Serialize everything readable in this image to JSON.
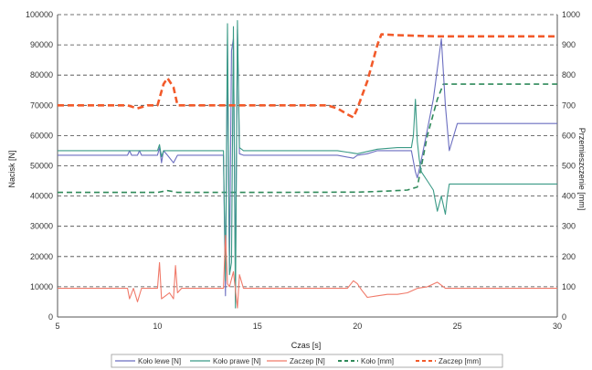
{
  "chart_data": {
    "type": "line",
    "xlabel": "Czas [s]",
    "ylabel_left": "Nacisk [N]",
    "ylabel_right": "Przemieszczenie [mm]",
    "xlim": [
      5,
      30
    ],
    "ylim_left": [
      0,
      100000
    ],
    "ylim_right": [
      0,
      1000
    ],
    "x_ticks": [
      5,
      10,
      15,
      20,
      25,
      30
    ],
    "y_ticks_left": [
      0,
      10000,
      20000,
      30000,
      40000,
      50000,
      60000,
      70000,
      80000,
      90000,
      100000
    ],
    "y_ticks_right": [
      0,
      100,
      200,
      300,
      400,
      500,
      600,
      700,
      800,
      900,
      1000
    ],
    "grid": "horizontal-dashed",
    "legend": "bottom",
    "series": [
      {
        "name": "Koło lewe [N]",
        "axis": "left",
        "color": "#6b6ec0",
        "dash": "solid",
        "x": [
          5,
          8.5,
          8.6,
          8.7,
          9.0,
          9.1,
          9.2,
          10.0,
          10.1,
          10.2,
          10.3,
          10.5,
          10.8,
          11.0,
          11.1,
          11.3,
          13.0,
          13.3,
          13.4,
          13.5,
          13.6,
          13.7,
          13.8,
          13.9,
          14.0,
          14.1,
          14.3,
          14.6,
          15.0,
          19.0,
          19.8,
          20.0,
          20.5,
          21.0,
          22.0,
          22.7,
          22.9,
          23.0,
          23.2,
          23.5,
          23.8,
          24.0,
          24.2,
          24.4,
          24.6,
          25.0,
          30.0
        ],
        "values": [
          53500,
          53500,
          55000,
          53500,
          53500,
          55000,
          53500,
          53500,
          56000,
          51000,
          55000,
          53500,
          51000,
          53500,
          53500,
          53500,
          53500,
          53500,
          7000,
          90000,
          15000,
          88000,
          92000,
          12000,
          95000,
          54000,
          53500,
          53500,
          53500,
          53500,
          52500,
          53500,
          54000,
          55000,
          55000,
          55000,
          48000,
          46000,
          52000,
          62000,
          72000,
          82000,
          92000,
          70000,
          55000,
          64000,
          64000
        ]
      },
      {
        "name": "Koło prawe [N]",
        "axis": "left",
        "color": "#3a9a86",
        "dash": "solid",
        "x": [
          5,
          10.0,
          10.1,
          10.2,
          10.3,
          10.5,
          11.0,
          13.0,
          13.3,
          13.4,
          13.5,
          13.6,
          13.7,
          13.8,
          13.9,
          14.0,
          14.1,
          14.3,
          15.0,
          19.0,
          20.0,
          21.0,
          22.0,
          22.7,
          22.8,
          22.9,
          23.0,
          23.1,
          23.2,
          23.5,
          23.8,
          24.0,
          24.2,
          24.4,
          24.5,
          24.6,
          25.0,
          30.0
        ],
        "values": [
          55000,
          55000,
          57000,
          53000,
          55000,
          55000,
          55000,
          55000,
          55000,
          12000,
          97000,
          14000,
          18000,
          96000,
          3000,
          98000,
          56000,
          55000,
          55000,
          55000,
          54000,
          55500,
          56000,
          56000,
          60000,
          72000,
          58000,
          52000,
          48000,
          45000,
          42000,
          35000,
          40000,
          34000,
          40000,
          44000,
          44000,
          44000
        ]
      },
      {
        "name": "Zaczep [N]",
        "axis": "left",
        "color": "#f07a6a",
        "dash": "solid",
        "x": [
          5,
          8.5,
          8.6,
          8.8,
          9.0,
          9.2,
          10.0,
          10.1,
          10.2,
          10.4,
          10.6,
          10.8,
          10.9,
          11.0,
          11.2,
          13.0,
          13.3,
          13.4,
          13.5,
          13.6,
          13.8,
          14.0,
          14.1,
          14.3,
          15.0,
          19.5,
          19.8,
          20.0,
          20.2,
          20.5,
          21.0,
          21.5,
          22.0,
          22.5,
          23.0,
          23.5,
          24.0,
          24.2,
          24.4,
          25.0,
          30.0
        ],
        "values": [
          9500,
          9500,
          6000,
          9500,
          5000,
          9500,
          9500,
          18000,
          6000,
          7000,
          8000,
          6000,
          17000,
          8000,
          9500,
          9500,
          9500,
          27000,
          11000,
          10000,
          15000,
          3000,
          14000,
          9500,
          9500,
          9500,
          12000,
          11000,
          9000,
          6500,
          7000,
          7500,
          7500,
          8000,
          9500,
          10000,
          11500,
          10500,
          9500,
          9500,
          9500
        ]
      },
      {
        "name": "Koło [mm]",
        "axis": "right",
        "color": "#2f8a5a",
        "dash": "dashed",
        "x": [
          5,
          10.0,
          10.5,
          11.0,
          15.0,
          20.0,
          21.0,
          22.0,
          22.5,
          23.0,
          23.5,
          24.0,
          24.3,
          24.5,
          30.0
        ],
        "values": [
          412,
          412,
          418,
          412,
          412,
          413,
          415,
          418,
          420,
          430,
          600,
          720,
          770,
          770,
          770
        ]
      },
      {
        "name": "Zaczep [mm]",
        "axis": "right",
        "color": "#f25a2a",
        "dash": "dashed",
        "x": [
          5,
          8.5,
          9.0,
          9.5,
          10.0,
          10.3,
          10.5,
          10.8,
          11.0,
          15.0,
          18.5,
          19.0,
          19.5,
          19.8,
          20.0,
          20.5,
          21.0,
          21.2,
          22.0,
          23.0,
          24.0,
          25.0,
          30.0
        ],
        "values": [
          700,
          700,
          690,
          700,
          700,
          770,
          790,
          760,
          700,
          700,
          700,
          690,
          670,
          660,
          690,
          780,
          900,
          935,
          932,
          930,
          928,
          928,
          928
        ]
      }
    ]
  }
}
